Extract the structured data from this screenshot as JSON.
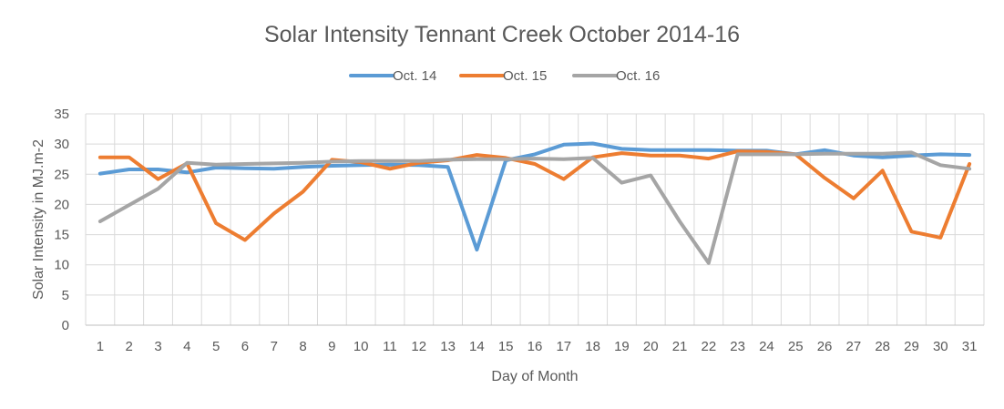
{
  "chart_data": {
    "type": "line",
    "title": "Solar Intensity Tennant Creek October 2014-16",
    "xlabel": "Day of Month",
    "ylabel": "Solar Intensity in MJ.m-2",
    "ylim": [
      0,
      35
    ],
    "yticks": [
      0,
      5,
      10,
      15,
      20,
      25,
      30,
      35
    ],
    "grid": true,
    "legend_position": "top",
    "x": [
      1,
      2,
      3,
      4,
      5,
      6,
      7,
      8,
      9,
      10,
      11,
      12,
      13,
      14,
      15,
      16,
      17,
      18,
      19,
      20,
      21,
      22,
      23,
      24,
      25,
      26,
      27,
      28,
      29,
      30,
      31
    ],
    "series": [
      {
        "name": "Oct. 14",
        "color": "#5b9bd5",
        "values": [
          25.1,
          25.8,
          25.8,
          25.3,
          26.1,
          26.0,
          25.9,
          26.2,
          26.4,
          26.5,
          26.6,
          26.5,
          26.2,
          12.5,
          27.3,
          28.3,
          29.9,
          30.1,
          29.2,
          29.0,
          29.0,
          29.0,
          28.9,
          28.9,
          28.3,
          29.0,
          28.1,
          27.8,
          28.1,
          28.3,
          28.2
        ]
      },
      {
        "name": "Oct. 15",
        "color": "#ed7d31",
        "values": [
          27.8,
          27.8,
          24.2,
          26.8,
          16.9,
          14.1,
          18.5,
          22.1,
          27.4,
          27.0,
          25.9,
          26.9,
          27.3,
          28.2,
          27.7,
          26.7,
          24.2,
          27.8,
          28.5,
          28.1,
          28.1,
          27.6,
          28.8,
          28.7,
          28.3,
          24.4,
          21.0,
          25.6,
          15.5,
          14.5,
          26.7
        ]
      },
      {
        "name": "Oct. 16",
        "color": "#a5a5a5",
        "values": [
          17.2,
          19.9,
          22.6,
          26.9,
          26.6,
          26.7,
          26.8,
          26.9,
          27.1,
          27.2,
          27.2,
          27.2,
          27.4,
          27.5,
          27.5,
          27.6,
          27.5,
          27.7,
          23.6,
          24.8,
          17.2,
          10.3,
          28.3,
          28.3,
          28.3,
          28.4,
          28.4,
          28.4,
          28.6,
          26.5,
          25.9
        ]
      }
    ]
  }
}
